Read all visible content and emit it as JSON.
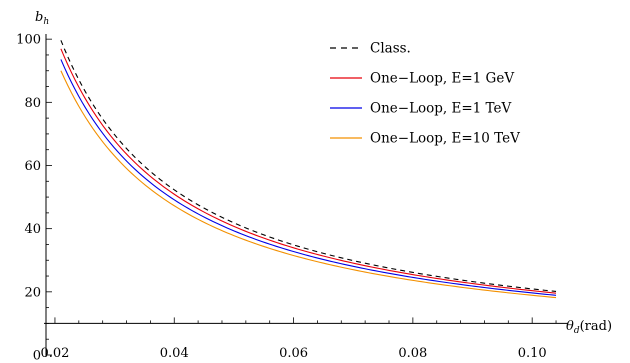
{
  "chart_data": {
    "type": "line",
    "title": "",
    "xlabel": "θd(rad)",
    "xlabel_main": "θ",
    "xlabel_sub": "d",
    "xlabel_unit": "(rad)",
    "ylabel": "bh",
    "ylabel_main": "b",
    "ylabel_sub": "h",
    "xlim": [
      0.0185,
      0.105
    ],
    "ylim": [
      0,
      101
    ],
    "x_axis_crosses_y_at": 10,
    "x_ticks": [
      0.02,
      0.04,
      0.06,
      0.08,
      0.1
    ],
    "x_tick_labels": [
      "0.02",
      "0.04",
      "0.06",
      "0.08",
      "0.10"
    ],
    "y_ticks": [
      0,
      20,
      40,
      60,
      80,
      100
    ],
    "y_tick_labels": [
      "0",
      "20",
      "40",
      "60",
      "80",
      "100"
    ],
    "grid": false,
    "legend_position": "top-right",
    "x": [
      0.021,
      0.025,
      0.03,
      0.035,
      0.04,
      0.045,
      0.05,
      0.06,
      0.07,
      0.08,
      0.09,
      0.1,
      0.104
    ],
    "series": [
      {
        "name": "Class.",
        "color": "#000000",
        "style": "dashed",
        "values": [
          99.6,
          83.7,
          69.7,
          59.8,
          52.3,
          46.5,
          41.8,
          34.9,
          29.9,
          26.2,
          23.2,
          20.9,
          20.2
        ]
      },
      {
        "name": "One−Loop, E=1 GeV",
        "color": "#e8000b",
        "style": "solid",
        "values": [
          97.0,
          81.4,
          67.9,
          58.2,
          50.9,
          45.2,
          40.7,
          33.9,
          29.1,
          25.4,
          22.6,
          20.3,
          19.6
        ]
      },
      {
        "name": "One−Loop, E=1 TeV",
        "color": "#0000e6",
        "style": "solid",
        "values": [
          93.6,
          78.6,
          65.5,
          56.2,
          49.1,
          43.7,
          39.3,
          32.7,
          28.1,
          24.6,
          21.8,
          19.6,
          18.9
        ]
      },
      {
        "name": "One−Loop, E=10 TeV",
        "color": "#f39000",
        "style": "solid",
        "values": [
          90.0,
          75.6,
          63.0,
          54.0,
          47.3,
          42.0,
          37.8,
          31.5,
          27.0,
          23.6,
          21.0,
          18.9,
          18.2
        ]
      }
    ]
  }
}
